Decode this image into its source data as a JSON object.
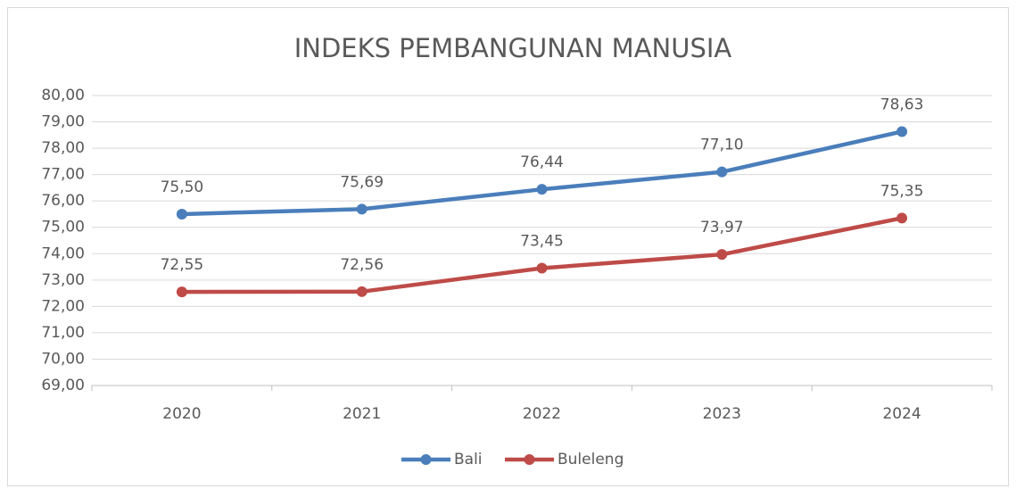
{
  "chart_data": {
    "type": "line",
    "title": "INDEKS PEMBANGUNAN MANUSIA",
    "categories": [
      "2020",
      "2021",
      "2022",
      "2023",
      "2024"
    ],
    "series": [
      {
        "name": "Bali",
        "color": "#4a7ebb",
        "values": [
          75.5,
          75.69,
          76.44,
          77.1,
          78.63
        ],
        "value_labels": [
          "75,50",
          "75,69",
          "76,44",
          "77,10",
          "78,63"
        ]
      },
      {
        "name": "Buleleng",
        "color": "#be4b48",
        "values": [
          72.55,
          72.56,
          73.45,
          73.97,
          75.35
        ],
        "value_labels": [
          "72,55",
          "72,56",
          "73,45",
          "73,97",
          "75,35"
        ]
      }
    ],
    "ylim": [
      69,
      80
    ],
    "yticks": [
      {
        "value": 69,
        "label": "69,00"
      },
      {
        "value": 70,
        "label": "70,00"
      },
      {
        "value": 71,
        "label": "71,00"
      },
      {
        "value": 72,
        "label": "72,00"
      },
      {
        "value": 73,
        "label": "73,00"
      },
      {
        "value": 74,
        "label": "74,00"
      },
      {
        "value": 75,
        "label": "75,00"
      },
      {
        "value": 76,
        "label": "76,00"
      },
      {
        "value": 77,
        "label": "77,00"
      },
      {
        "value": 78,
        "label": "78,00"
      },
      {
        "value": 79,
        "label": "79,00"
      },
      {
        "value": 80,
        "label": "80,00"
      }
    ],
    "grid": true,
    "legend": "bottom"
  }
}
